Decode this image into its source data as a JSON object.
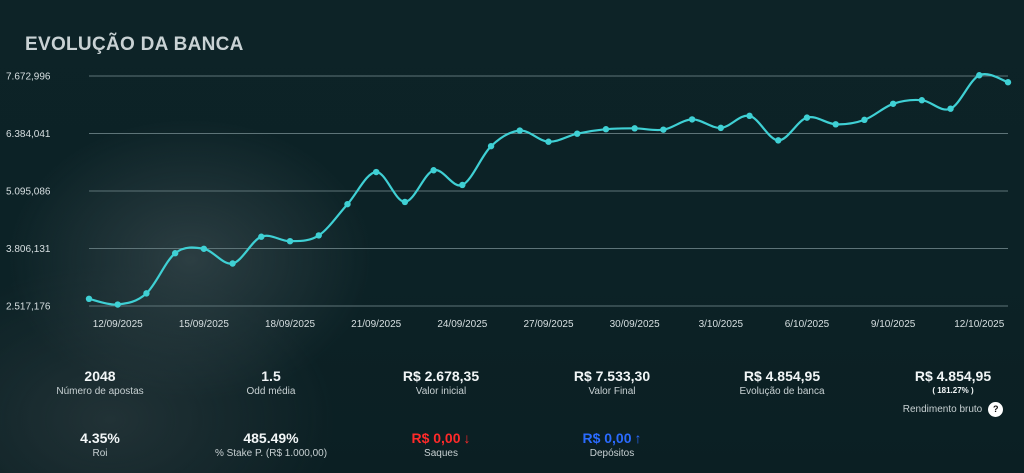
{
  "title": "EVOLUÇÃO DA BANCA",
  "colors": {
    "line": "#3fd0d4",
    "grid": "#5e7478",
    "axis_text": "#d7dfe1",
    "negative": "#ff2a2a",
    "positive": "#2a6bff"
  },
  "chart_data": {
    "type": "line",
    "y_tick_labels": [
      "7.672,996",
      "6.384,041",
      "5.095,086",
      "3.806,131",
      "2.517,176"
    ],
    "y_ticks": [
      7672.996,
      6384.041,
      5095.086,
      3806.131,
      2517.176
    ],
    "ylim": [
      2517.176,
      7672.996
    ],
    "x_tick_labels": [
      "12/09/2025",
      "15/09/2025",
      "18/09/2025",
      "21/09/2025",
      "24/09/2025",
      "27/09/2025",
      "30/09/2025",
      "3/10/2025",
      "6/10/2025",
      "9/10/2025",
      "12/10/2025"
    ],
    "x_tick_index": [
      1,
      4,
      7,
      10,
      13,
      16,
      19,
      22,
      25,
      28,
      31
    ],
    "values": [
      2678.35,
      2550,
      2800,
      3700,
      3800,
      3470,
      4070,
      3970,
      4100,
      4800,
      5520,
      4850,
      5560,
      5230,
      6100,
      6450,
      6200,
      6380,
      6480,
      6500,
      6470,
      6700,
      6510,
      6780,
      6230,
      6740,
      6590,
      6690,
      7050,
      7130,
      6940,
      7690,
      7533.3
    ],
    "grid": true
  },
  "stats_row1": [
    {
      "value": "2048",
      "label": "Número de apostas"
    },
    {
      "value": "1.5",
      "label": "Odd média"
    },
    {
      "value": "R$ 2.678,35",
      "label": "Valor inicial"
    },
    {
      "value": "R$ 7.533,30",
      "label": "Valor Final"
    },
    {
      "value": "R$ 4.854,95",
      "label": "Evolução de banca"
    },
    {
      "value": "R$ 4.854,95",
      "percent": "( 181.27% )",
      "label": "Rendimento bruto",
      "help": "?"
    }
  ],
  "stats_row2": [
    {
      "value": "4.35%",
      "label": "Roi"
    },
    {
      "value": "485.49%",
      "label": "% Stake P. (R$ 1.000,00)"
    },
    {
      "value": "R$ 0,00",
      "arrow": "↓",
      "label": "Saques"
    },
    {
      "value": "R$ 0,00",
      "arrow": "↑",
      "label": "Depósitos"
    }
  ]
}
